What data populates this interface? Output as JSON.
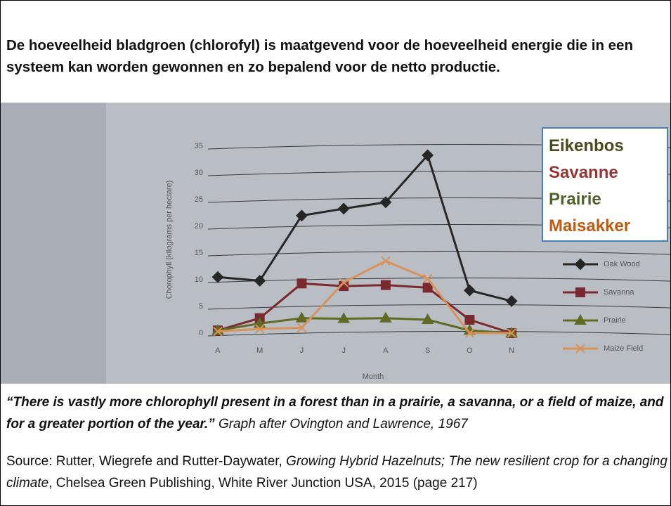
{
  "heading": "De hoeveelheid bladgroen (chlorofyl) is maatgevend voor de hoeveelheid energie die in een systeem kan worden gewonnen en zo bepalend voor de netto productie.",
  "chart_data": {
    "type": "line",
    "x_label": "Month",
    "y_label": "Chorophyll (kilograms per hectare)",
    "categories": [
      "A",
      "M",
      "J",
      "J",
      "A",
      "S",
      "O",
      "N"
    ],
    "ylim": [
      0,
      35
    ],
    "yticks": [
      0,
      5,
      10,
      15,
      20,
      25,
      30,
      35
    ],
    "grid": true,
    "series": [
      {
        "name": "Oak Wood",
        "color": "#262626",
        "marker": "diamond",
        "values": [
          10.5,
          9.8,
          22,
          23.3,
          24.5,
          33.3,
          8,
          6
        ]
      },
      {
        "name": "Savanna",
        "color": "#7a2a2e",
        "marker": "square",
        "values": [
          0.5,
          2.8,
          9.3,
          8.8,
          9,
          8.5,
          2.5,
          0
        ]
      },
      {
        "name": "Prairie",
        "color": "#5f6a22",
        "marker": "triangle",
        "values": [
          0.5,
          1.8,
          2.8,
          2.7,
          2.8,
          2.5,
          0.5,
          0
        ]
      },
      {
        "name": "Maize Field",
        "color": "#d8925a",
        "marker": "x",
        "values": [
          0.3,
          0.8,
          1,
          9.5,
          13.5,
          10.2,
          0,
          0
        ]
      }
    ]
  },
  "overlay_legend": [
    {
      "label": "Eikenbos",
      "color": "#4b4a1e"
    },
    {
      "label": "Savanne",
      "color": "#953735"
    },
    {
      "label": "Prairie",
      "color": "#4f6228"
    },
    {
      "label": "Maisakker",
      "color": "#c05a10"
    }
  ],
  "caption": {
    "quote": "“There is vastly more chlorophyll present in a forest than in a prairie, a savanna, or a field of maize, and for a greater portion of the year.”",
    "credit": "Graph after Ovington and Lawrence, 1967"
  },
  "source": [
    "Source: Rutter, Wiegrefe and Rutter-Daywater, ",
    "Growing Hybrid Hazelnuts; The new resilient crop for a changing climate",
    ", Chelsea Green Publishing, White River Junction USA, 2015  (page 217)"
  ]
}
